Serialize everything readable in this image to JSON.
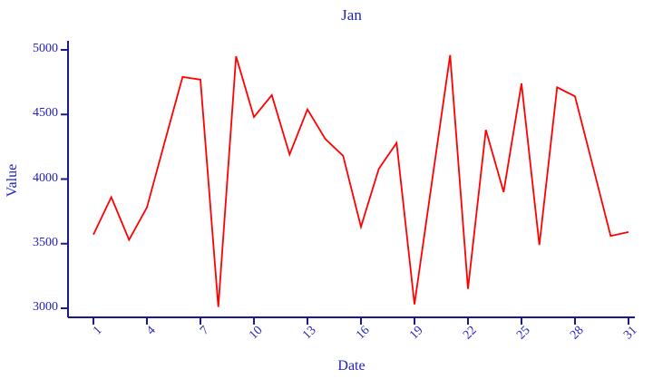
{
  "chart_data": {
    "type": "line",
    "title": "Jan",
    "xlabel": "Date",
    "ylabel": "Value",
    "x": [
      1,
      2,
      3,
      4,
      5,
      6,
      7,
      8,
      9,
      10,
      11,
      12,
      13,
      14,
      15,
      16,
      17,
      18,
      19,
      20,
      21,
      22,
      23,
      24,
      25,
      26,
      27,
      28,
      29,
      30,
      31
    ],
    "values": [
      3570,
      3860,
      3530,
      3780,
      4290,
      4790,
      4770,
      3010,
      4950,
      4480,
      4650,
      4190,
      4540,
      4310,
      4180,
      3630,
      4080,
      4280,
      3030,
      4000,
      4960,
      3150,
      4380,
      3900,
      4740,
      3490,
      4710,
      4640,
      4100,
      3560,
      3590
    ],
    "xticks": [
      1,
      4,
      7,
      10,
      13,
      16,
      19,
      22,
      25,
      28,
      31
    ],
    "yticks": [
      3000,
      3500,
      4000,
      4500,
      5000
    ],
    "xlim": [
      1,
      31
    ],
    "ylim": [
      3000,
      5000
    ],
    "grid": false,
    "legend": "none",
    "colors": {
      "line": "#ff0000",
      "text": "#2222bb",
      "axis": "#1a1a8c"
    }
  }
}
